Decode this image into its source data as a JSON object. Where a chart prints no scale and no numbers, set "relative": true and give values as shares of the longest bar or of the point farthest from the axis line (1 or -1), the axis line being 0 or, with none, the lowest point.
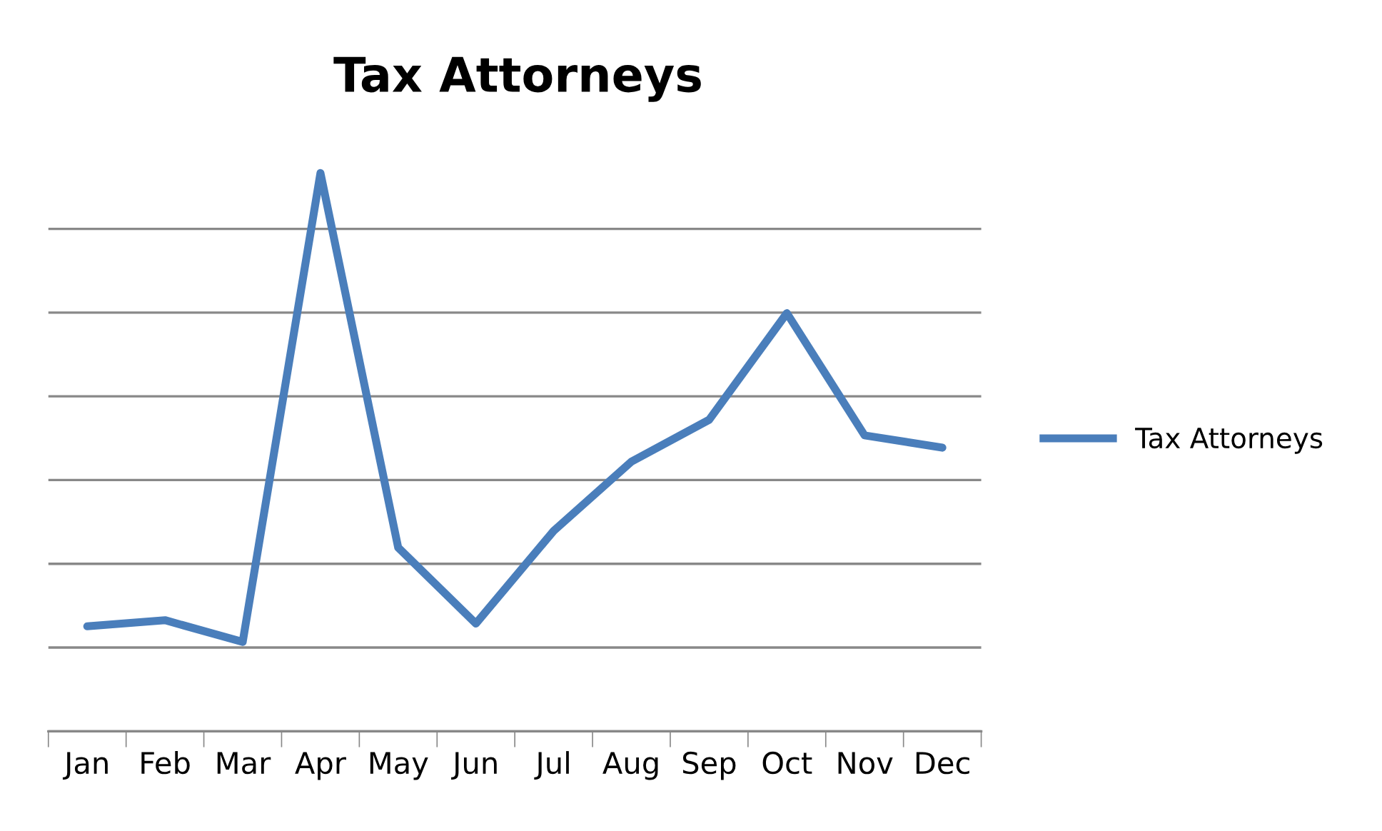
{
  "chart_data": {
    "type": "line",
    "title": "Tax Attorneys",
    "relative": true,
    "categories": [
      "Jan",
      "Feb",
      "Mar",
      "Apr",
      "May",
      "Jun",
      "Jul",
      "Aug",
      "Sep",
      "Oct",
      "Nov",
      "Dec"
    ],
    "series": [
      {
        "name": "Tax Attorneys",
        "color": "#4a7ebb",
        "values": [
          0.188,
          0.199,
          0.16,
          1,
          0.329,
          0.193,
          0.359,
          0.483,
          0.558,
          0.749,
          0.53,
          0.508
        ]
      }
    ],
    "grid": "y",
    "legend": "right",
    "marker": "none",
    "line_style": "solid"
  }
}
